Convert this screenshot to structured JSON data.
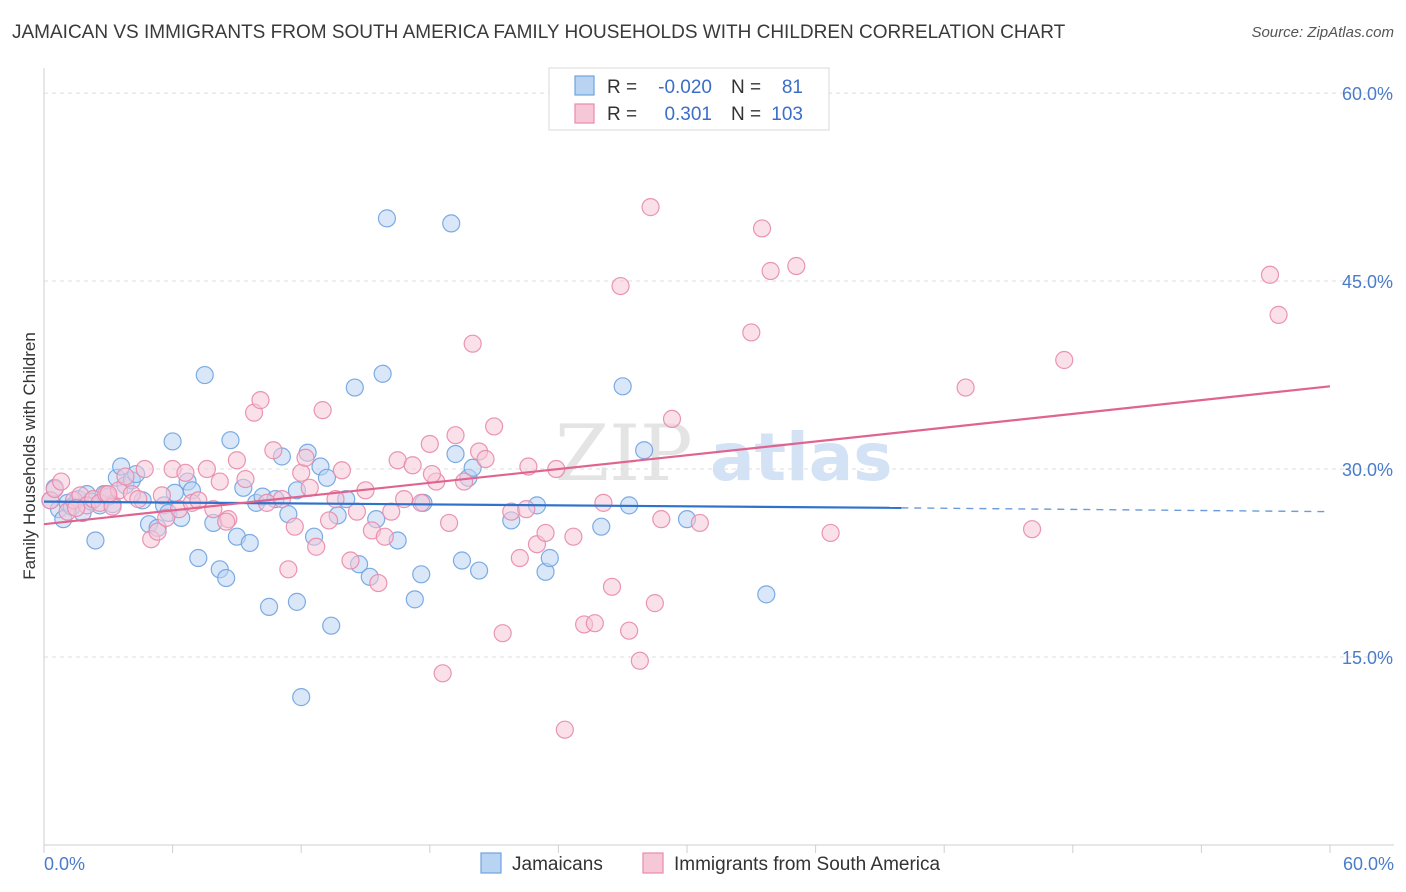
{
  "title": "JAMAICAN VS IMMIGRANTS FROM SOUTH AMERICA FAMILY HOUSEHOLDS WITH CHILDREN CORRELATION CHART",
  "source": "Source: ZipAtlas.com",
  "watermark": {
    "zip": "ZIP",
    "atlas": "atlas"
  },
  "colors": {
    "jamaicans": "#6fa3e0",
    "jamaicans_fill": "#b9d3f3",
    "jamaicans_line": "#2f72cc",
    "immigrants": "#e889ab",
    "immigrants_fill": "#f6c7d7",
    "immigrants_line": "#e0648f",
    "grid": "#dedede",
    "tick_label": "#4a7cc9"
  },
  "legend_top": {
    "rows": [
      {
        "r_label": "R =",
        "r_value": "-0.020",
        "n_label": "N =",
        "n_value": "81"
      },
      {
        "r_label": "R =",
        "r_value": "0.301",
        "n_label": "N =",
        "n_value": "103"
      }
    ]
  },
  "chart_data": {
    "type": "scatter",
    "title": "JAMAICAN VS IMMIGRANTS FROM SOUTH AMERICA FAMILY HOUSEHOLDS WITH CHILDREN CORRELATION CHART",
    "xlabel": "",
    "ylabel": "Family Households with Children",
    "xlim": [
      0,
      60
    ],
    "ylim": [
      0,
      62
    ],
    "x_tick_labels": [
      "0.0%",
      "60.0%"
    ],
    "y_ticks": [
      15,
      30,
      45,
      60
    ],
    "y_tick_labels": [
      "15.0%",
      "30.0%",
      "45.0%",
      "60.0%"
    ],
    "grid": true,
    "legend_position": "top-center",
    "series": [
      {
        "name": "Jamaicans",
        "trend": {
          "x": [
            0,
            40,
            60
          ],
          "y": [
            27.4,
            26.9,
            26.6
          ],
          "dashed_from": 40
        },
        "points": [
          [
            0.3,
            27.5
          ],
          [
            0.5,
            28.5
          ],
          [
            0.7,
            26.8
          ],
          [
            0.9,
            26.0
          ],
          [
            1.1,
            27.3
          ],
          [
            1.3,
            27.0
          ],
          [
            1.6,
            27.6
          ],
          [
            1.8,
            26.5
          ],
          [
            2.0,
            28.0
          ],
          [
            2.2,
            27.4
          ],
          [
            2.4,
            24.3
          ],
          [
            2.6,
            27.1
          ],
          [
            2.8,
            28.0
          ],
          [
            3.0,
            27.8
          ],
          [
            3.2,
            27.2
          ],
          [
            3.4,
            29.3
          ],
          [
            3.6,
            30.2
          ],
          [
            3.8,
            28.7
          ],
          [
            4.1,
            29.1
          ],
          [
            4.3,
            29.6
          ],
          [
            4.6,
            27.5
          ],
          [
            4.9,
            25.6
          ],
          [
            5.3,
            25.3
          ],
          [
            5.6,
            27.1
          ],
          [
            5.8,
            26.5
          ],
          [
            6.0,
            32.2
          ],
          [
            6.1,
            28.1
          ],
          [
            6.4,
            26.1
          ],
          [
            6.7,
            29.0
          ],
          [
            6.9,
            28.3
          ],
          [
            7.2,
            22.9
          ],
          [
            7.5,
            37.5
          ],
          [
            7.9,
            25.7
          ],
          [
            8.2,
            22.0
          ],
          [
            8.5,
            21.3
          ],
          [
            8.7,
            32.3
          ],
          [
            9.0,
            24.6
          ],
          [
            9.3,
            28.5
          ],
          [
            9.6,
            24.1
          ],
          [
            9.9,
            27.3
          ],
          [
            10.2,
            27.8
          ],
          [
            10.5,
            19.0
          ],
          [
            10.8,
            27.6
          ],
          [
            11.1,
            31.0
          ],
          [
            11.4,
            26.4
          ],
          [
            11.8,
            28.3
          ],
          [
            11.8,
            19.4
          ],
          [
            12.0,
            11.8
          ],
          [
            12.3,
            31.3
          ],
          [
            12.6,
            24.6
          ],
          [
            12.9,
            30.2
          ],
          [
            13.2,
            29.3
          ],
          [
            13.4,
            17.5
          ],
          [
            13.7,
            26.3
          ],
          [
            14.1,
            27.6
          ],
          [
            14.5,
            36.5
          ],
          [
            14.7,
            22.4
          ],
          [
            15.2,
            21.4
          ],
          [
            15.5,
            26.0
          ],
          [
            15.8,
            37.6
          ],
          [
            16.0,
            50.0
          ],
          [
            16.5,
            24.3
          ],
          [
            17.3,
            19.6
          ],
          [
            17.6,
            21.6
          ],
          [
            17.7,
            27.3
          ],
          [
            19.0,
            49.6
          ],
          [
            19.2,
            31.2
          ],
          [
            19.5,
            22.7
          ],
          [
            19.8,
            29.3
          ],
          [
            20.0,
            30.1
          ],
          [
            20.3,
            21.9
          ],
          [
            21.8,
            25.9
          ],
          [
            23.0,
            27.1
          ],
          [
            23.4,
            21.8
          ],
          [
            23.6,
            22.9
          ],
          [
            26.0,
            25.4
          ],
          [
            27.0,
            36.6
          ],
          [
            27.3,
            27.1
          ],
          [
            28.0,
            31.5
          ],
          [
            30.0,
            26.0
          ],
          [
            33.7,
            20.0
          ]
        ]
      },
      {
        "name": "Immigrants from South America",
        "trend": {
          "x": [
            0,
            60
          ],
          "y": [
            25.6,
            36.6
          ]
        },
        "points": [
          [
            0.3,
            27.5
          ],
          [
            0.5,
            28.4
          ],
          [
            0.8,
            29.0
          ],
          [
            1.1,
            26.6
          ],
          [
            1.4,
            27.5
          ],
          [
            1.7,
            27.9
          ],
          [
            2.0,
            27.1
          ],
          [
            2.3,
            27.6
          ],
          [
            2.6,
            27.3
          ],
          [
            2.9,
            28.0
          ],
          [
            3.2,
            27.0
          ],
          [
            3.5,
            28.3
          ],
          [
            3.8,
            29.4
          ],
          [
            4.1,
            28.0
          ],
          [
            4.4,
            27.6
          ],
          [
            4.7,
            30.0
          ],
          [
            5.0,
            24.4
          ],
          [
            5.3,
            25.0
          ],
          [
            5.7,
            26.1
          ],
          [
            6.0,
            30.0
          ],
          [
            6.3,
            26.8
          ],
          [
            6.6,
            29.7
          ],
          [
            6.9,
            27.3
          ],
          [
            7.2,
            27.5
          ],
          [
            7.6,
            30.0
          ],
          [
            7.9,
            26.8
          ],
          [
            8.2,
            29.0
          ],
          [
            8.6,
            26.0
          ],
          [
            9.0,
            30.7
          ],
          [
            9.4,
            29.2
          ],
          [
            9.8,
            34.5
          ],
          [
            10.1,
            35.5
          ],
          [
            10.4,
            27.3
          ],
          [
            10.7,
            31.5
          ],
          [
            11.1,
            27.6
          ],
          [
            11.4,
            22.0
          ],
          [
            11.7,
            25.4
          ],
          [
            12.0,
            29.7
          ],
          [
            12.4,
            28.5
          ],
          [
            12.7,
            23.8
          ],
          [
            13.0,
            34.7
          ],
          [
            13.3,
            25.9
          ],
          [
            13.6,
            27.6
          ],
          [
            13.9,
            29.9
          ],
          [
            14.3,
            22.7
          ],
          [
            14.6,
            26.6
          ],
          [
            15.0,
            28.3
          ],
          [
            15.3,
            25.1
          ],
          [
            15.6,
            20.9
          ],
          [
            15.9,
            24.6
          ],
          [
            16.2,
            26.6
          ],
          [
            16.5,
            30.7
          ],
          [
            16.8,
            27.6
          ],
          [
            17.2,
            30.3
          ],
          [
            17.6,
            27.3
          ],
          [
            18.0,
            32.0
          ],
          [
            18.3,
            29.0
          ],
          [
            18.6,
            13.7
          ],
          [
            18.9,
            25.7
          ],
          [
            19.2,
            32.7
          ],
          [
            19.6,
            29.0
          ],
          [
            20.0,
            40.0
          ],
          [
            20.3,
            31.4
          ],
          [
            20.6,
            30.8
          ],
          [
            21.0,
            33.4
          ],
          [
            21.4,
            16.9
          ],
          [
            21.8,
            26.6
          ],
          [
            22.2,
            22.9
          ],
          [
            22.6,
            30.2
          ],
          [
            23.0,
            24.0
          ],
          [
            23.4,
            24.9
          ],
          [
            23.9,
            30.0
          ],
          [
            24.3,
            9.2
          ],
          [
            24.7,
            24.6
          ],
          [
            25.2,
            17.6
          ],
          [
            25.7,
            17.7
          ],
          [
            26.1,
            27.3
          ],
          [
            26.5,
            20.6
          ],
          [
            26.9,
            44.6
          ],
          [
            27.3,
            17.1
          ],
          [
            27.8,
            14.7
          ],
          [
            28.3,
            50.9
          ],
          [
            28.5,
            19.3
          ],
          [
            28.8,
            26.0
          ],
          [
            29.3,
            34.0
          ],
          [
            30.6,
            25.7
          ],
          [
            33.0,
            40.9
          ],
          [
            33.5,
            49.2
          ],
          [
            33.9,
            45.8
          ],
          [
            35.1,
            46.2
          ],
          [
            36.7,
            24.9
          ],
          [
            43.0,
            36.5
          ],
          [
            46.1,
            25.2
          ],
          [
            47.6,
            38.7
          ],
          [
            57.2,
            45.5
          ],
          [
            57.6,
            42.3
          ],
          [
            1.5,
            26.9
          ],
          [
            3.0,
            28.0
          ],
          [
            5.5,
            27.9
          ],
          [
            8.5,
            25.8
          ],
          [
            12.2,
            30.9
          ],
          [
            18.1,
            29.6
          ],
          [
            22.5,
            26.8
          ]
        ]
      }
    ]
  },
  "bottom_legend": [
    {
      "label": "Jamaicans"
    },
    {
      "label": "Immigrants from South America"
    }
  ]
}
